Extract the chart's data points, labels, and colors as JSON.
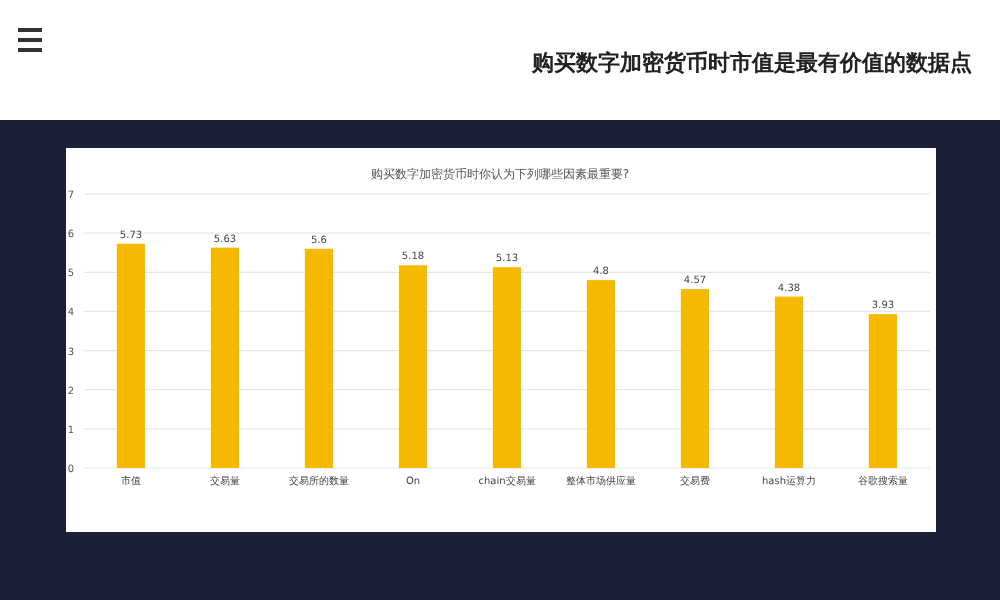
{
  "chart_data": {
    "type": "bar",
    "title": "购买数字加密货币时市值是最有价值的数据点",
    "subtitle": "购买数字加密货币时你认为下列哪些因素最重要?",
    "categories": [
      "市值",
      "交易量",
      "交易所的数量",
      "On",
      "chain交易量",
      "整体市场供应量",
      "交易费",
      "hash运算力",
      "谷歌搜索量"
    ],
    "values": [
      5.73,
      5.63,
      5.6,
      5.18,
      5.13,
      4.8,
      4.57,
      4.38,
      3.93
    ],
    "color": "#f5b900",
    "ylim": [
      0,
      7
    ],
    "yticks": [
      0,
      1,
      2,
      3,
      4,
      5,
      6,
      7
    ],
    "grid": "y",
    "data_labels": true
  }
}
